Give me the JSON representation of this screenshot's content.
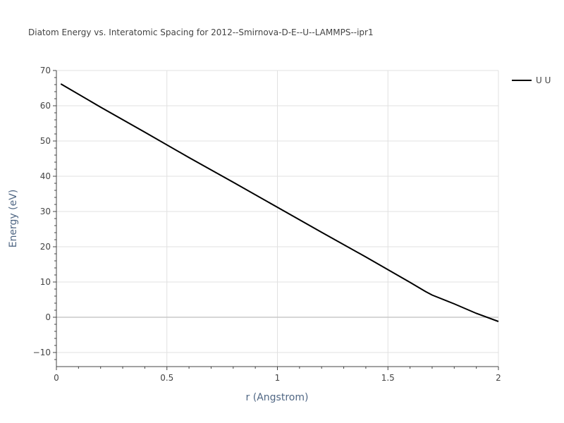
{
  "chart_data": {
    "type": "line",
    "title": "Diatom Energy vs. Interatomic Spacing for 2012--Smirnova-D-E--U--LAMMPS--ipr1",
    "xlabel": "r (Angstrom)",
    "ylabel": "Energy (eV)",
    "xlim": [
      0,
      2
    ],
    "ylim": [
      -14,
      70
    ],
    "x_ticks": [
      0,
      0.5,
      1,
      1.5,
      2
    ],
    "x_tick_labels": [
      "0",
      "0.5",
      "1",
      "1.5",
      "2"
    ],
    "y_ticks": [
      -10,
      0,
      10,
      20,
      30,
      40,
      50,
      60,
      70
    ],
    "y_tick_labels": [
      "−10",
      "0",
      "10",
      "20",
      "30",
      "40",
      "50",
      "60",
      "70"
    ],
    "grid": true,
    "legend_position": "top-right",
    "series": [
      {
        "name": "U U",
        "color": "#000000",
        "x": [
          0.02,
          0.2,
          0.4,
          0.6,
          0.8,
          1.0,
          1.2,
          1.4,
          1.5,
          1.6,
          1.67,
          1.7,
          1.8,
          1.9,
          2.0
        ],
        "y": [
          66.2,
          59.6,
          52.5,
          45.3,
          38.3,
          31.2,
          24.1,
          17.1,
          13.5,
          9.9,
          7.3,
          6.3,
          3.8,
          1.1,
          -1.2
        ]
      }
    ]
  }
}
